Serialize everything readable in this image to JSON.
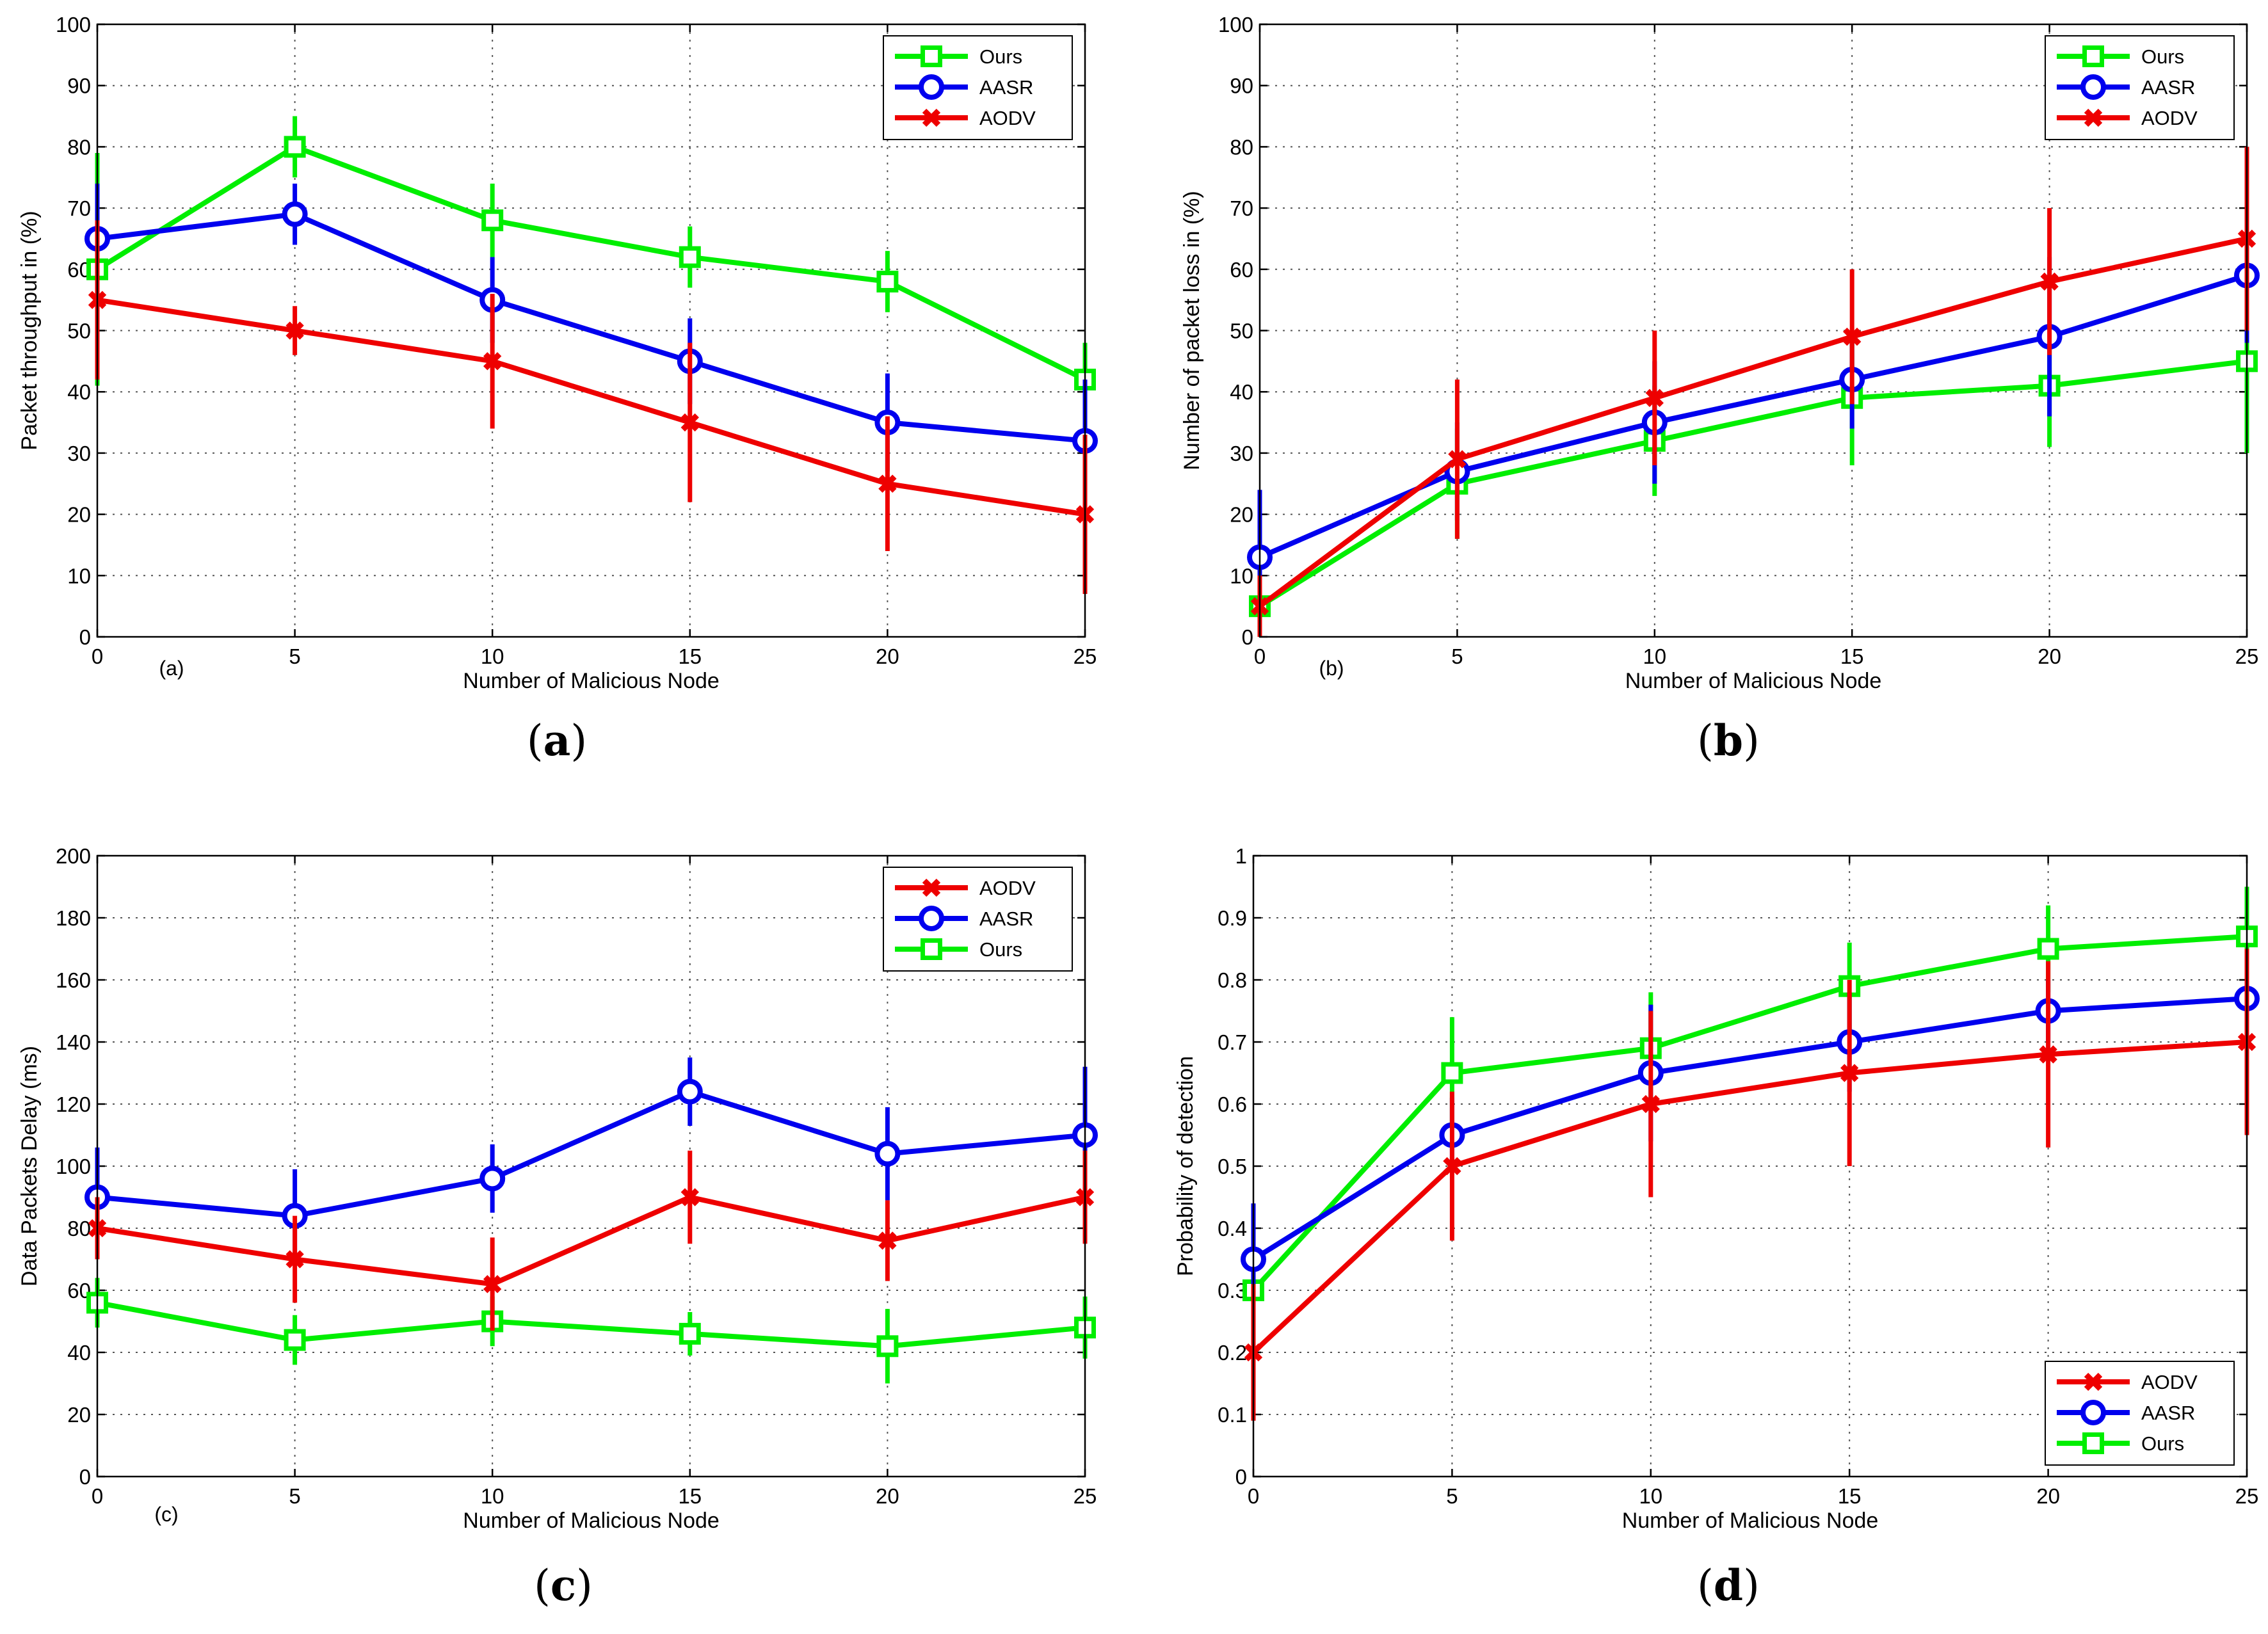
{
  "figure": {
    "panels": [
      "a",
      "b",
      "c",
      "d"
    ]
  },
  "chart_data": [
    {
      "id": "a",
      "type": "line",
      "caption": "a",
      "sublabel": "(a)",
      "xlabel": "Number of Malicious Node",
      "ylabel": "Packet throughput in (%)",
      "x": [
        0,
        5,
        10,
        15,
        20,
        25
      ],
      "xlim": [
        0,
        25
      ],
      "ylim": [
        0,
        100
      ],
      "xticks": [
        0,
        5,
        10,
        15,
        20,
        25
      ],
      "yticks": [
        0,
        10,
        20,
        30,
        40,
        50,
        60,
        70,
        80,
        90,
        100
      ],
      "grid": true,
      "legend_position": "top-right",
      "legend_order": [
        "Ours",
        "AASR",
        "AODV"
      ],
      "series": [
        {
          "name": "Ours",
          "color": "#00ee00",
          "marker": "square",
          "values": [
            60,
            80,
            68,
            62,
            58,
            42
          ],
          "err": [
            19,
            5,
            6,
            5,
            5,
            6
          ]
        },
        {
          "name": "AASR",
          "color": "#0000ee",
          "marker": "circle",
          "values": [
            65,
            69,
            55,
            45,
            35,
            32
          ],
          "err": [
            9,
            5,
            7,
            7,
            8,
            10
          ]
        },
        {
          "name": "AODV",
          "color": "#ee0000",
          "marker": "x",
          "values": [
            55,
            50,
            45,
            35,
            25,
            20
          ],
          "err": [
            13,
            4,
            11,
            13,
            11,
            13
          ]
        }
      ]
    },
    {
      "id": "b",
      "type": "line",
      "caption": "b",
      "sublabel": "(b)",
      "xlabel": "Number of Malicious Node",
      "ylabel": "Number of packet loss in (%)",
      "x": [
        0,
        5,
        10,
        15,
        20,
        25
      ],
      "xlim": [
        0,
        25
      ],
      "ylim": [
        0,
        100
      ],
      "xticks": [
        0,
        5,
        10,
        15,
        20,
        25
      ],
      "yticks": [
        0,
        10,
        20,
        30,
        40,
        50,
        60,
        70,
        80,
        90,
        100
      ],
      "grid": true,
      "legend_position": "top-right",
      "legend_order": [
        "Ours",
        "AASR",
        "AODV"
      ],
      "series": [
        {
          "name": "Ours",
          "color": "#00ee00",
          "marker": "square",
          "values": [
            5,
            25,
            32,
            39,
            41,
            45
          ],
          "err": [
            5,
            9,
            9,
            11,
            10,
            15
          ]
        },
        {
          "name": "AASR",
          "color": "#0000ee",
          "marker": "circle",
          "values": [
            13,
            27,
            35,
            42,
            49,
            59
          ],
          "err": [
            11,
            8,
            10,
            8,
            13,
            11
          ]
        },
        {
          "name": "AODV",
          "color": "#ee0000",
          "marker": "x",
          "values": [
            5,
            29,
            39,
            49,
            58,
            65
          ],
          "err": [
            5,
            13,
            11,
            11,
            12,
            15
          ]
        }
      ]
    },
    {
      "id": "c",
      "type": "line",
      "caption": "c",
      "sublabel": "(c)",
      "xlabel": "Number of Malicious Node",
      "ylabel": "Data Packets Delay (ms)",
      "x": [
        0,
        5,
        10,
        15,
        20,
        25
      ],
      "xlim": [
        0,
        25
      ],
      "ylim": [
        0,
        200
      ],
      "xticks": [
        0,
        5,
        10,
        15,
        20,
        25
      ],
      "yticks": [
        0,
        20,
        40,
        60,
        80,
        100,
        120,
        140,
        160,
        180,
        200
      ],
      "grid": true,
      "legend_position": "top-right",
      "legend_order": [
        "AODV",
        "AASR",
        "Ours"
      ],
      "series": [
        {
          "name": "Ours",
          "color": "#00ee00",
          "marker": "square",
          "values": [
            56,
            44,
            50,
            46,
            42,
            48
          ],
          "err": [
            8,
            8,
            8,
            7,
            12,
            10
          ]
        },
        {
          "name": "AASR",
          "color": "#0000ee",
          "marker": "circle",
          "values": [
            90,
            84,
            96,
            124,
            104,
            110
          ],
          "err": [
            16,
            15,
            11,
            11,
            15,
            22
          ]
        },
        {
          "name": "AODV",
          "color": "#ee0000",
          "marker": "x",
          "values": [
            80,
            70,
            62,
            90,
            76,
            90
          ],
          "err": [
            10,
            14,
            15,
            15,
            13,
            15
          ]
        }
      ]
    },
    {
      "id": "d",
      "type": "line",
      "caption": "d",
      "sublabel": "",
      "xlabel": "Number of Malicious Node",
      "ylabel": "Probability of detection",
      "x": [
        0,
        5,
        10,
        15,
        20,
        25
      ],
      "xlim": [
        0,
        25
      ],
      "ylim": [
        0,
        1
      ],
      "xticks": [
        0,
        5,
        10,
        15,
        20,
        25
      ],
      "yticks": [
        0,
        0.1,
        0.2,
        0.3,
        0.4,
        0.5,
        0.6,
        0.7,
        0.8,
        0.9,
        1
      ],
      "ytick_labels": [
        "0",
        "0.1",
        "0.2",
        "0.3",
        "0.4",
        "0.5",
        "0.6",
        "0.7",
        "0.8",
        "0.9",
        "1"
      ],
      "grid": true,
      "legend_position": "bottom-right",
      "legend_order": [
        "AODV",
        "AASR",
        "Ours"
      ],
      "series": [
        {
          "name": "Ours",
          "color": "#00ee00",
          "marker": "square",
          "values": [
            0.3,
            0.65,
            0.69,
            0.79,
            0.85,
            0.87
          ],
          "err": [
            0.04,
            0.09,
            0.09,
            0.07,
            0.07,
            0.08
          ]
        },
        {
          "name": "AASR",
          "color": "#0000ee",
          "marker": "circle",
          "values": [
            0.35,
            0.55,
            0.65,
            0.7,
            0.75,
            0.77
          ],
          "err": [
            0.09,
            0.06,
            0.11,
            0.08,
            0.05,
            0.07
          ]
        },
        {
          "name": "AODV",
          "color": "#ee0000",
          "marker": "x",
          "values": [
            0.2,
            0.5,
            0.6,
            0.65,
            0.68,
            0.7
          ],
          "err": [
            0.11,
            0.12,
            0.15,
            0.15,
            0.15,
            0.15
          ]
        }
      ]
    }
  ]
}
